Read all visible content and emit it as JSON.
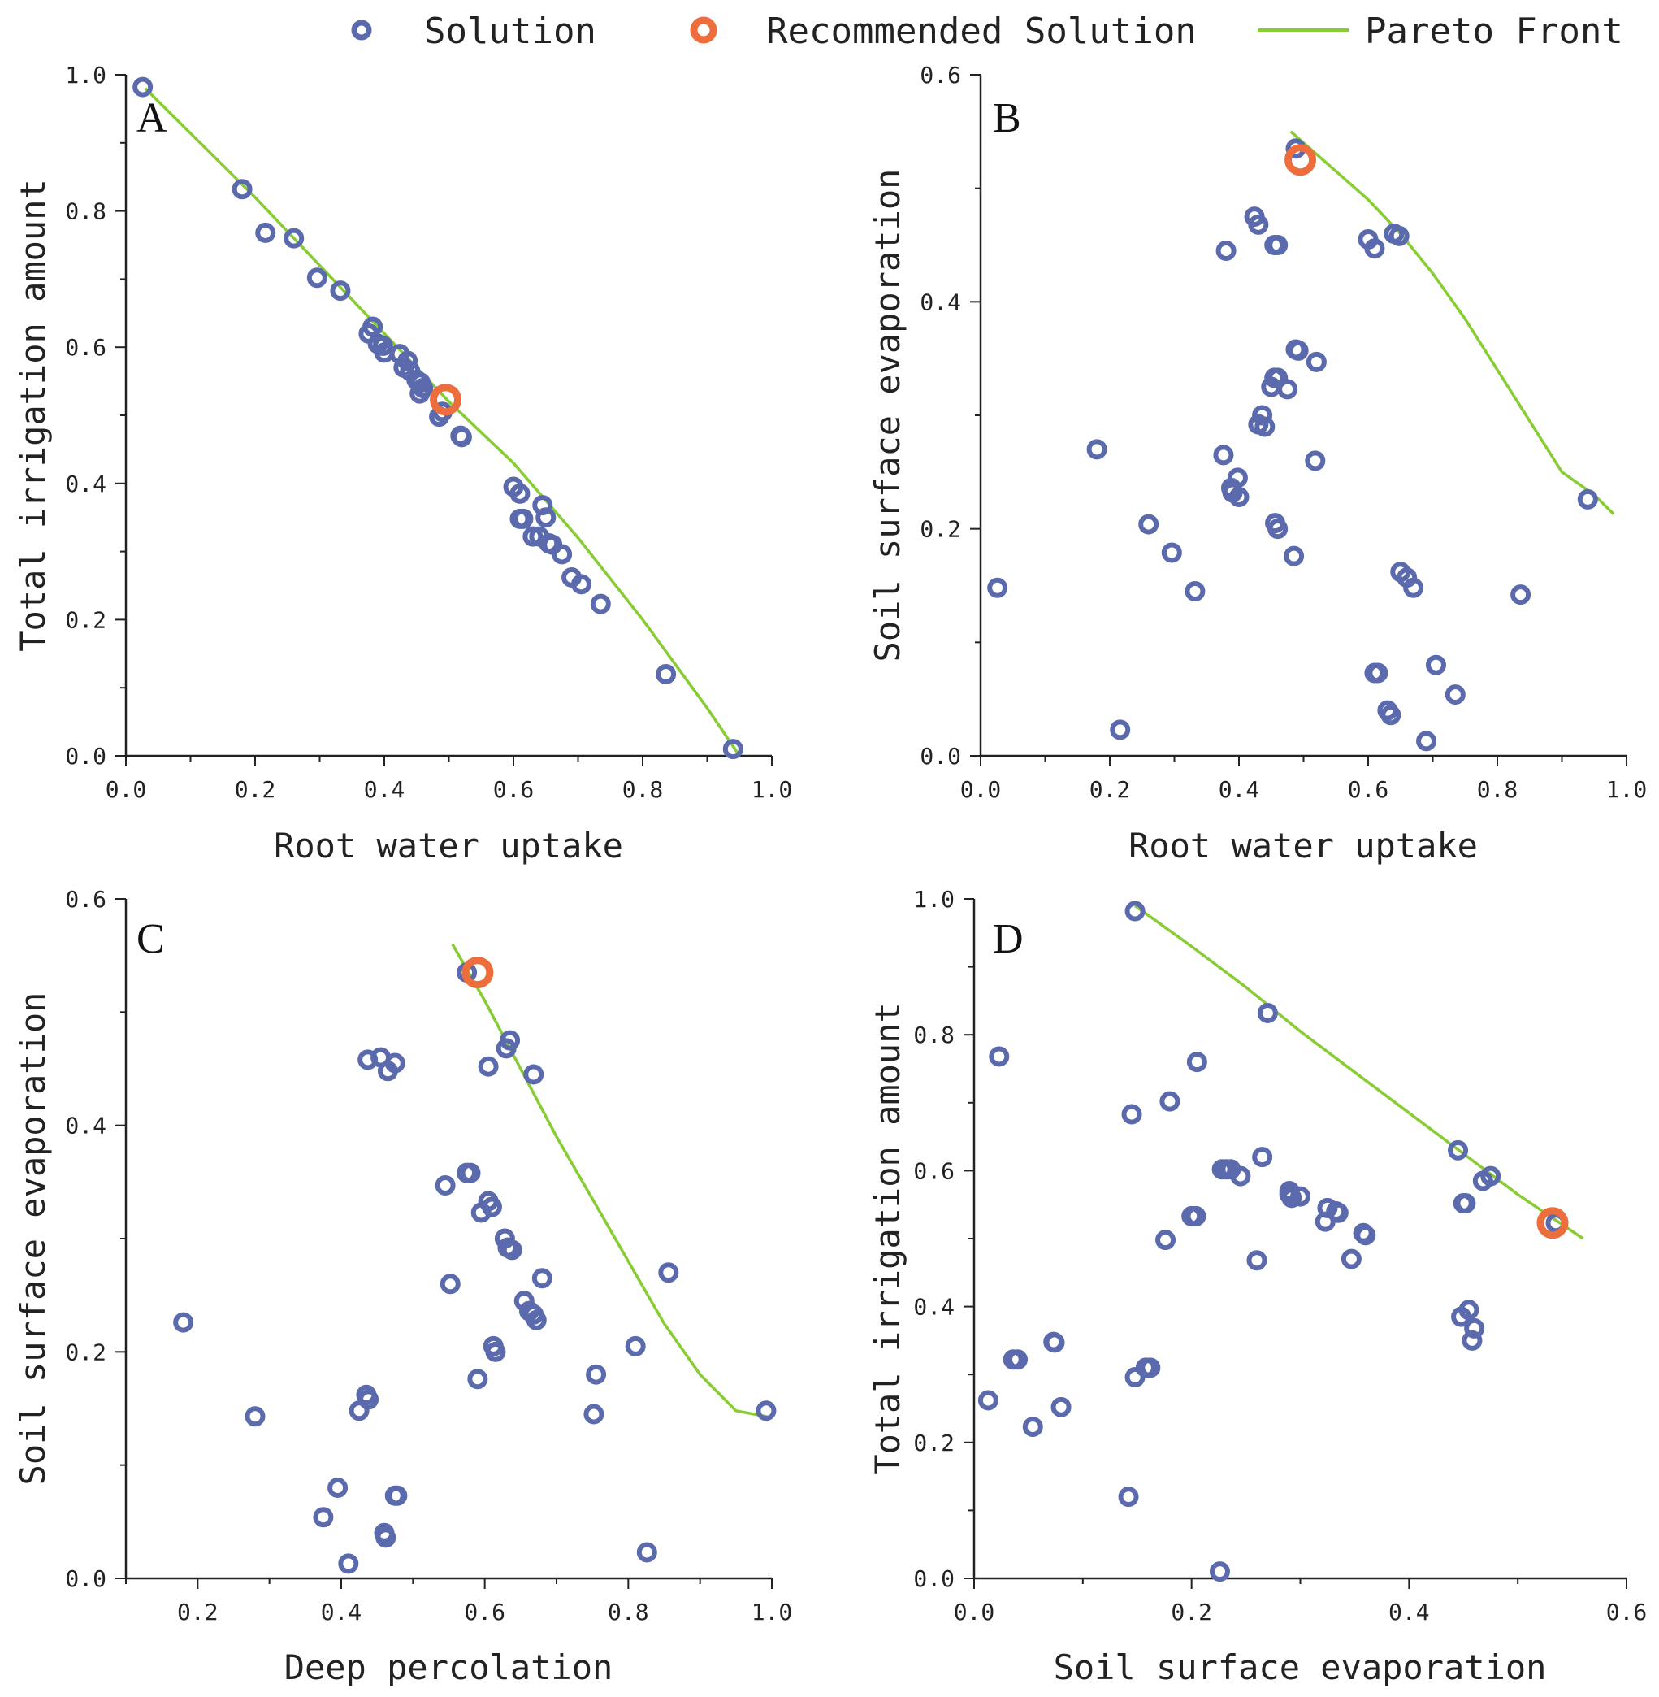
{
  "colors": {
    "solution": "#5a6aad",
    "recommended": "#ee6d3c",
    "pareto": "#88cc33",
    "axis": "#222222"
  },
  "legend": {
    "solution_label": "Solution",
    "recommended_label": "Recommended Solution",
    "pareto_label": "Pareto Front"
  },
  "chart_data": [
    {
      "id": "A",
      "type": "scatter",
      "panel_label": "A",
      "xlabel": "Root water uptake",
      "ylabel": "Total irrigation amount",
      "xlim": [
        0,
        1
      ],
      "ylim": [
        0,
        1
      ],
      "xticks": [
        "0.0",
        "0.2",
        "0.4",
        "0.6",
        "0.8",
        "1.0"
      ],
      "yticks": [
        "0.0",
        "0.2",
        "0.4",
        "0.6",
        "0.8",
        "1.0"
      ],
      "xtick_values": [
        0,
        0.2,
        0.4,
        0.6,
        0.8,
        1.0
      ],
      "ytick_values": [
        0,
        0.2,
        0.4,
        0.6,
        0.8,
        1.0
      ],
      "solutions": [
        [
          0.026,
          0.982
        ],
        [
          0.18,
          0.832
        ],
        [
          0.216,
          0.768
        ],
        [
          0.26,
          0.76
        ],
        [
          0.296,
          0.702
        ],
        [
          0.332,
          0.683
        ],
        [
          0.376,
          0.62
        ],
        [
          0.382,
          0.63
        ],
        [
          0.39,
          0.605
        ],
        [
          0.398,
          0.602
        ],
        [
          0.4,
          0.592
        ],
        [
          0.424,
          0.59
        ],
        [
          0.43,
          0.57
        ],
        [
          0.436,
          0.58
        ],
        [
          0.44,
          0.565
        ],
        [
          0.45,
          0.552
        ],
        [
          0.456,
          0.548
        ],
        [
          0.455,
          0.532
        ],
        [
          0.46,
          0.54
        ],
        [
          0.485,
          0.498
        ],
        [
          0.49,
          0.505
        ],
        [
          0.518,
          0.47
        ],
        [
          0.52,
          0.468
        ],
        [
          0.6,
          0.395
        ],
        [
          0.61,
          0.385
        ],
        [
          0.61,
          0.348
        ],
        [
          0.615,
          0.348
        ],
        [
          0.63,
          0.322
        ],
        [
          0.64,
          0.322
        ],
        [
          0.645,
          0.368
        ],
        [
          0.65,
          0.35
        ],
        [
          0.655,
          0.312
        ],
        [
          0.66,
          0.31
        ],
        [
          0.675,
          0.296
        ],
        [
          0.69,
          0.262
        ],
        [
          0.705,
          0.252
        ],
        [
          0.735,
          0.223
        ],
        [
          0.836,
          0.12
        ],
        [
          0.94,
          0.01
        ]
      ],
      "recommended": [
        0.495,
        0.523
      ],
      "pareto_x": [
        0.03,
        0.2,
        0.4,
        0.5,
        0.6,
        0.7,
        0.8,
        0.9,
        0.95
      ],
      "pareto_y": [
        0.98,
        0.82,
        0.62,
        0.52,
        0.43,
        0.32,
        0.2,
        0.07,
        0.0
      ]
    },
    {
      "id": "B",
      "type": "scatter",
      "panel_label": "B",
      "xlabel": "Root water uptake",
      "ylabel": "Soil surface evaporation",
      "xlim": [
        0,
        1
      ],
      "ylim": [
        0,
        0.6
      ],
      "xticks": [
        "0.0",
        "0.2",
        "0.4",
        "0.6",
        "0.8",
        "1.0"
      ],
      "yticks": [
        "0.0",
        "0.2",
        "0.4",
        "0.6"
      ],
      "xtick_values": [
        0,
        0.2,
        0.4,
        0.6,
        0.8,
        1.0
      ],
      "ytick_values": [
        0,
        0.2,
        0.4,
        0.6
      ],
      "solutions": [
        [
          0.026,
          0.148
        ],
        [
          0.18,
          0.27
        ],
        [
          0.216,
          0.023
        ],
        [
          0.26,
          0.204
        ],
        [
          0.296,
          0.179
        ],
        [
          0.332,
          0.145
        ],
        [
          0.376,
          0.265
        ],
        [
          0.38,
          0.445
        ],
        [
          0.388,
          0.236
        ],
        [
          0.39,
          0.232
        ],
        [
          0.398,
          0.245
        ],
        [
          0.4,
          0.228
        ],
        [
          0.424,
          0.475
        ],
        [
          0.43,
          0.468
        ],
        [
          0.43,
          0.292
        ],
        [
          0.436,
          0.3
        ],
        [
          0.44,
          0.29
        ],
        [
          0.45,
          0.325
        ],
        [
          0.456,
          0.205
        ],
        [
          0.46,
          0.2
        ],
        [
          0.455,
          0.45
        ],
        [
          0.46,
          0.45
        ],
        [
          0.455,
          0.333
        ],
        [
          0.46,
          0.333
        ],
        [
          0.475,
          0.323
        ],
        [
          0.485,
          0.176
        ],
        [
          0.488,
          0.358
        ],
        [
          0.492,
          0.357
        ],
        [
          0.488,
          0.535
        ],
        [
          0.518,
          0.26
        ],
        [
          0.52,
          0.347
        ],
        [
          0.6,
          0.455
        ],
        [
          0.61,
          0.447
        ],
        [
          0.61,
          0.073
        ],
        [
          0.615,
          0.073
        ],
        [
          0.63,
          0.04
        ],
        [
          0.635,
          0.036
        ],
        [
          0.64,
          0.46
        ],
        [
          0.648,
          0.458
        ],
        [
          0.65,
          0.162
        ],
        [
          0.66,
          0.157
        ],
        [
          0.67,
          0.148
        ],
        [
          0.69,
          0.013
        ],
        [
          0.705,
          0.08
        ],
        [
          0.735,
          0.054
        ],
        [
          0.836,
          0.142
        ],
        [
          0.94,
          0.226
        ]
      ],
      "recommended": [
        0.495,
        0.525
      ],
      "pareto_x": [
        0.48,
        0.55,
        0.6,
        0.65,
        0.7,
        0.75,
        0.8,
        0.85,
        0.9,
        0.95,
        0.98
      ],
      "pareto_y": [
        0.55,
        0.515,
        0.49,
        0.46,
        0.425,
        0.385,
        0.34,
        0.295,
        0.25,
        0.23,
        0.213
      ]
    },
    {
      "id": "C",
      "type": "scatter",
      "panel_label": "C",
      "xlabel": "Deep percolation",
      "ylabel": "Soil surface evaporation",
      "xlim": [
        0.1,
        1
      ],
      "ylim": [
        0,
        0.6
      ],
      "xticks": [
        "0.2",
        "0.4",
        "0.6",
        "0.8",
        "1.0"
      ],
      "yticks": [
        "0.0",
        "0.2",
        "0.4",
        "0.6"
      ],
      "xtick_values": [
        0.2,
        0.4,
        0.6,
        0.8,
        1.0
      ],
      "ytick_values": [
        0,
        0.2,
        0.4,
        0.6
      ],
      "solutions": [
        [
          0.18,
          0.226
        ],
        [
          0.28,
          0.143
        ],
        [
          0.375,
          0.054
        ],
        [
          0.395,
          0.08
        ],
        [
          0.41,
          0.013
        ],
        [
          0.425,
          0.148
        ],
        [
          0.435,
          0.162
        ],
        [
          0.438,
          0.158
        ],
        [
          0.437,
          0.458
        ],
        [
          0.455,
          0.46
        ],
        [
          0.46,
          0.04
        ],
        [
          0.462,
          0.036
        ],
        [
          0.465,
          0.448
        ],
        [
          0.475,
          0.455
        ],
        [
          0.475,
          0.073
        ],
        [
          0.478,
          0.073
        ],
        [
          0.545,
          0.347
        ],
        [
          0.552,
          0.26
        ],
        [
          0.575,
          0.535
        ],
        [
          0.575,
          0.358
        ],
        [
          0.58,
          0.358
        ],
        [
          0.59,
          0.176
        ],
        [
          0.595,
          0.323
        ],
        [
          0.605,
          0.452
        ],
        [
          0.605,
          0.333
        ],
        [
          0.61,
          0.328
        ],
        [
          0.612,
          0.205
        ],
        [
          0.615,
          0.2
        ],
        [
          0.628,
          0.3
        ],
        [
          0.63,
          0.468
        ],
        [
          0.632,
          0.292
        ],
        [
          0.635,
          0.475
        ],
        [
          0.638,
          0.29
        ],
        [
          0.655,
          0.245
        ],
        [
          0.662,
          0.236
        ],
        [
          0.668,
          0.445
        ],
        [
          0.668,
          0.233
        ],
        [
          0.672,
          0.228
        ],
        [
          0.68,
          0.265
        ],
        [
          0.752,
          0.145
        ],
        [
          0.755,
          0.18
        ],
        [
          0.81,
          0.205
        ],
        [
          0.826,
          0.023
        ],
        [
          0.856,
          0.27
        ],
        [
          0.992,
          0.148
        ]
      ],
      "recommended": [
        0.59,
        0.535
      ],
      "pareto_x": [
        0.555,
        0.6,
        0.65,
        0.7,
        0.75,
        0.8,
        0.85,
        0.9,
        0.95,
        1.0
      ],
      "pareto_y": [
        0.56,
        0.51,
        0.45,
        0.39,
        0.335,
        0.28,
        0.225,
        0.18,
        0.148,
        0.142
      ]
    },
    {
      "id": "D",
      "type": "scatter",
      "panel_label": "D",
      "xlabel": "Soil surface evaporation",
      "ylabel": "Total irrigation amount",
      "xlim": [
        0,
        0.6
      ],
      "ylim": [
        0,
        1
      ],
      "xticks": [
        "0.0",
        "0.2",
        "0.4",
        "0.6"
      ],
      "yticks": [
        "0.0",
        "0.2",
        "0.4",
        "0.6",
        "0.8",
        "1.0"
      ],
      "xtick_values": [
        0,
        0.2,
        0.4,
        0.6
      ],
      "ytick_values": [
        0,
        0.2,
        0.4,
        0.6,
        0.8,
        1.0
      ],
      "solutions": [
        [
          0.013,
          0.262
        ],
        [
          0.023,
          0.768
        ],
        [
          0.036,
          0.322
        ],
        [
          0.04,
          0.322
        ],
        [
          0.054,
          0.223
        ],
        [
          0.073,
          0.348
        ],
        [
          0.074,
          0.347
        ],
        [
          0.08,
          0.252
        ],
        [
          0.142,
          0.12
        ],
        [
          0.145,
          0.683
        ],
        [
          0.148,
          0.296
        ],
        [
          0.148,
          0.982
        ],
        [
          0.158,
          0.31
        ],
        [
          0.162,
          0.31
        ],
        [
          0.176,
          0.498
        ],
        [
          0.18,
          0.702
        ],
        [
          0.2,
          0.533
        ],
        [
          0.204,
          0.533
        ],
        [
          0.205,
          0.76
        ],
        [
          0.226,
          0.01
        ],
        [
          0.228,
          0.602
        ],
        [
          0.232,
          0.602
        ],
        [
          0.236,
          0.602
        ],
        [
          0.245,
          0.592
        ],
        [
          0.26,
          0.468
        ],
        [
          0.265,
          0.62
        ],
        [
          0.27,
          0.832
        ],
        [
          0.29,
          0.565
        ],
        [
          0.292,
          0.56
        ],
        [
          0.29,
          0.57
        ],
        [
          0.3,
          0.562
        ],
        [
          0.323,
          0.525
        ],
        [
          0.325,
          0.545
        ],
        [
          0.333,
          0.54
        ],
        [
          0.335,
          0.538
        ],
        [
          0.347,
          0.47
        ],
        [
          0.358,
          0.508
        ],
        [
          0.36,
          0.505
        ],
        [
          0.445,
          0.63
        ],
        [
          0.448,
          0.385
        ],
        [
          0.45,
          0.552
        ],
        [
          0.452,
          0.552
        ],
        [
          0.455,
          0.395
        ],
        [
          0.458,
          0.35
        ],
        [
          0.46,
          0.368
        ],
        [
          0.468,
          0.585
        ],
        [
          0.475,
          0.592
        ],
        [
          0.535,
          0.523
        ]
      ],
      "recommended": [
        0.532,
        0.523
      ],
      "pareto_x": [
        0.148,
        0.2,
        0.25,
        0.3,
        0.35,
        0.4,
        0.45,
        0.5,
        0.56
      ],
      "pareto_y": [
        0.99,
        0.93,
        0.87,
        0.805,
        0.745,
        0.685,
        0.625,
        0.565,
        0.5
      ]
    }
  ]
}
